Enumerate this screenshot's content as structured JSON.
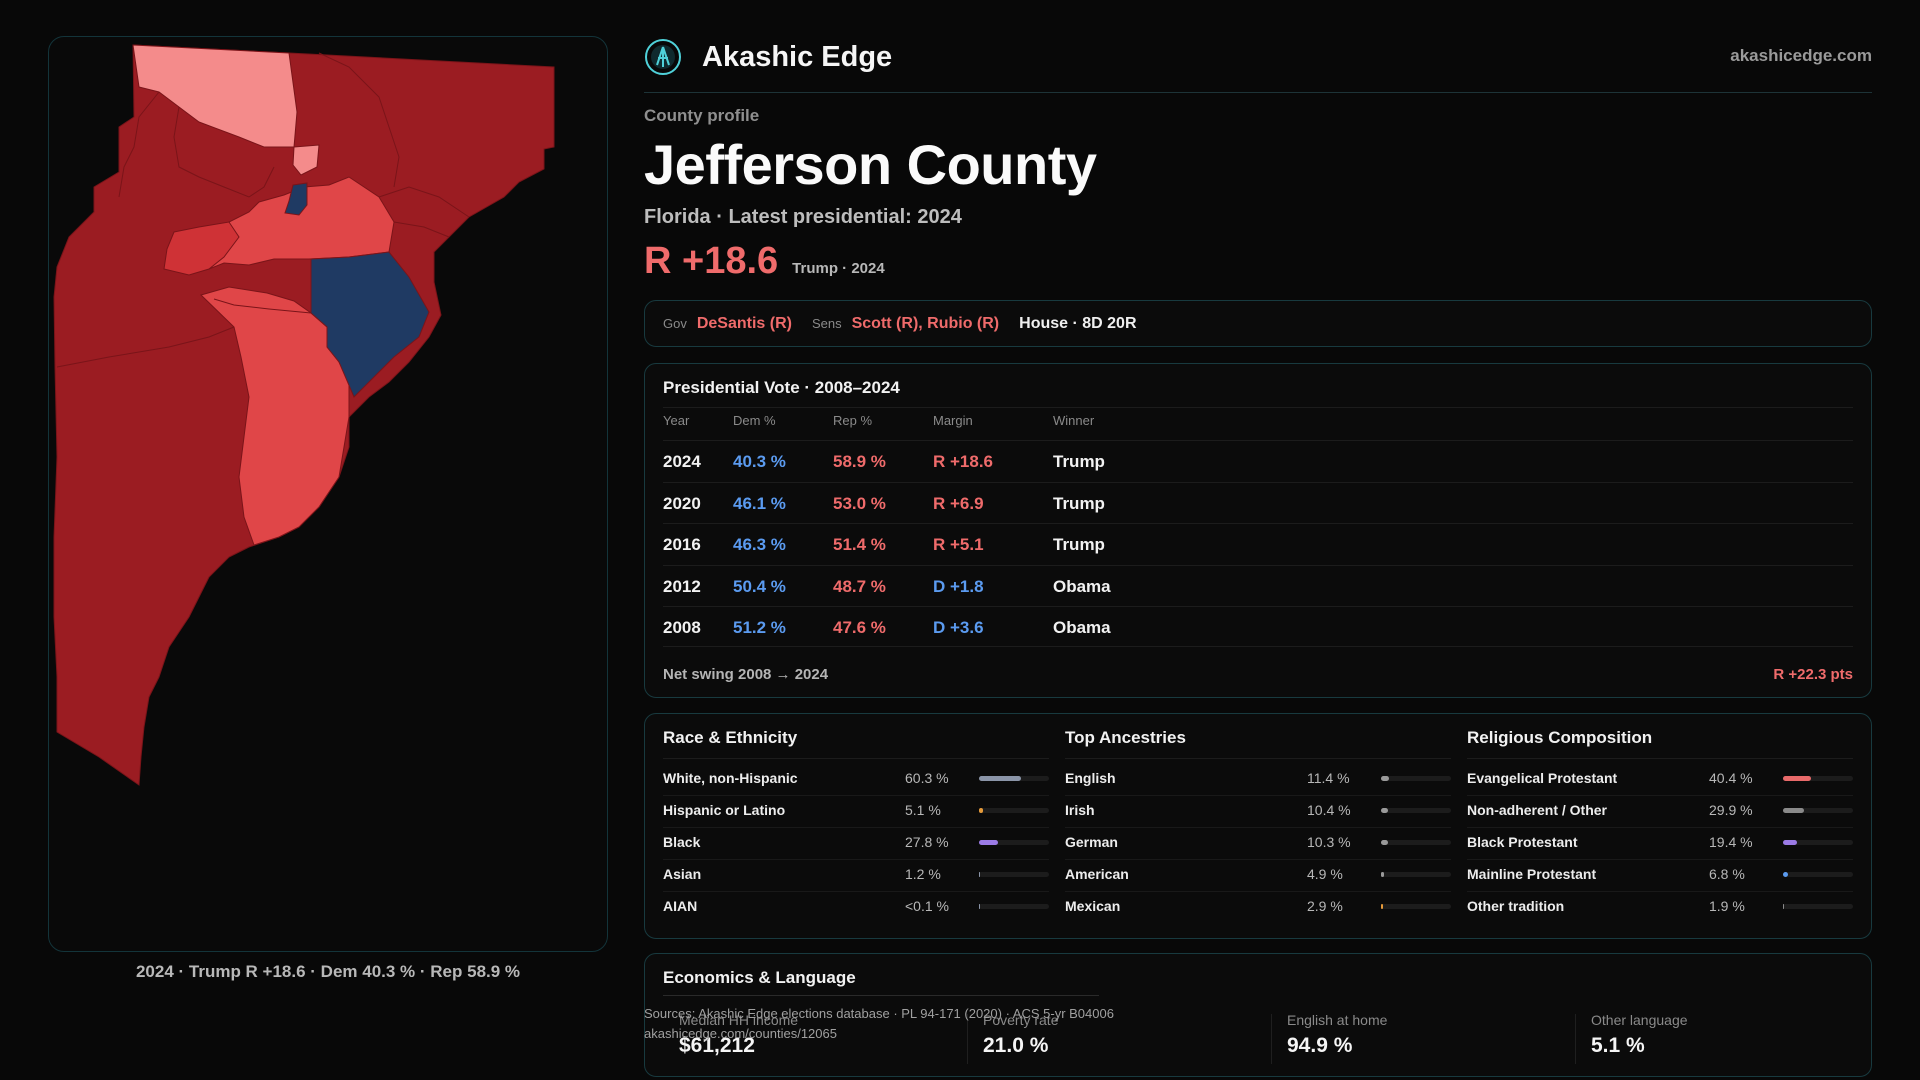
{
  "brand": {
    "name": "Akashic Edge",
    "url": "akashicedge.com"
  },
  "county": {
    "eyebrow": "County profile",
    "name": "Jefferson County",
    "subtitle": "Florida · Latest presidential: 2024",
    "margin": "R +18.6",
    "margin_note": "Trump · 2024"
  },
  "officials": {
    "gov_label": "Gov",
    "gov": "DeSantis (R)",
    "sens_label": "Sens",
    "sens": "Scott (R), Rubio (R)",
    "house": "House · 8D 20R"
  },
  "presidential": {
    "title": "Presidential Vote · 2008–2024",
    "headers": {
      "year": "Year",
      "dem": "Dem %",
      "rep": "Rep %",
      "margin": "Margin",
      "winner": "Winner"
    },
    "rows": [
      {
        "year": "2024",
        "dem": "40.3 %",
        "rep": "58.9 %",
        "margin": "R +18.6",
        "winner": "Trump",
        "party": "R"
      },
      {
        "year": "2020",
        "dem": "46.1 %",
        "rep": "53.0 %",
        "margin": "R +6.9",
        "winner": "Trump",
        "party": "R"
      },
      {
        "year": "2016",
        "dem": "46.3 %",
        "rep": "51.4 %",
        "margin": "R +5.1",
        "winner": "Trump",
        "party": "R"
      },
      {
        "year": "2012",
        "dem": "50.4 %",
        "rep": "48.7 %",
        "margin": "D +1.8",
        "winner": "Obama",
        "party": "D"
      },
      {
        "year": "2008",
        "dem": "51.2 %",
        "rep": "47.6 %",
        "margin": "D +3.6",
        "winner": "Obama",
        "party": "D"
      }
    ],
    "swing_label": "Net swing 2008 → 2024",
    "swing_value": "R +22.3 pts"
  },
  "demographics": [
    {
      "title": "Race & Ethnicity",
      "rows": [
        {
          "label": "White, non-Hispanic",
          "value": "60.3 %",
          "pct": 60.3,
          "color": "#8b95a8"
        },
        {
          "label": "Hispanic or Latino",
          "value": "5.1 %",
          "pct": 5.1,
          "color": "#e59a3a"
        },
        {
          "label": "Black",
          "value": "27.8 %",
          "pct": 27.8,
          "color": "#9b7be6"
        },
        {
          "label": "Asian",
          "value": "1.2 %",
          "pct": 1.2,
          "color": "#8b95a8"
        },
        {
          "label": "AIAN",
          "value": "<0.1 %",
          "pct": 0.05,
          "color": "#8b95a8"
        }
      ]
    },
    {
      "title": "Top Ancestries",
      "rows": [
        {
          "label": "English",
          "value": "11.4 %",
          "pct": 11.4,
          "color": "#9a9a9a"
        },
        {
          "label": "Irish",
          "value": "10.4 %",
          "pct": 10.4,
          "color": "#9a9a9a"
        },
        {
          "label": "German",
          "value": "10.3 %",
          "pct": 10.3,
          "color": "#9a9a9a"
        },
        {
          "label": "American",
          "value": "4.9 %",
          "pct": 4.9,
          "color": "#9a9a9a"
        },
        {
          "label": "Mexican",
          "value": "2.9 %",
          "pct": 2.9,
          "color": "#e59a3a"
        }
      ]
    },
    {
      "title": "Religious Composition",
      "rows": [
        {
          "label": "Evangelical Protestant",
          "value": "40.4 %",
          "pct": 40.4,
          "color": "#e86a6a"
        },
        {
          "label": "Non-adherent / Other",
          "value": "29.9 %",
          "pct": 29.9,
          "color": "#8a8a8a"
        },
        {
          "label": "Black Protestant",
          "value": "19.4 %",
          "pct": 19.4,
          "color": "#9b7be6"
        },
        {
          "label": "Mainline Protestant",
          "value": "6.8 %",
          "pct": 6.8,
          "color": "#5b9bf0"
        },
        {
          "label": "Other tradition",
          "value": "1.9 %",
          "pct": 1.9,
          "color": "#8a8a8a"
        }
      ]
    }
  ],
  "economics": {
    "title": "Economics & Language",
    "stats": [
      {
        "label": "Median HH income",
        "value": "$61,212"
      },
      {
        "label": "Poverty rate",
        "value": "21.0 %"
      },
      {
        "label": "English at home",
        "value": "94.9 %"
      },
      {
        "label": "Other language",
        "value": "5.1 %"
      }
    ]
  },
  "sources": {
    "line1": "Sources: Akashic Edge elections database · PL 94-171 (2020) · ACS 5-yr B04006",
    "line2": "akashicedge.com/counties/12065"
  },
  "map": {
    "caption": "2024 · Trump R +18.6 · Dem 40.3 % · Rep 58.9 %",
    "colors": {
      "strong_r": "#9b1c22",
      "lean_r": "#e04648",
      "light_r": "#f48b8b",
      "dem": "#1f3a63",
      "background": "#090909"
    }
  }
}
